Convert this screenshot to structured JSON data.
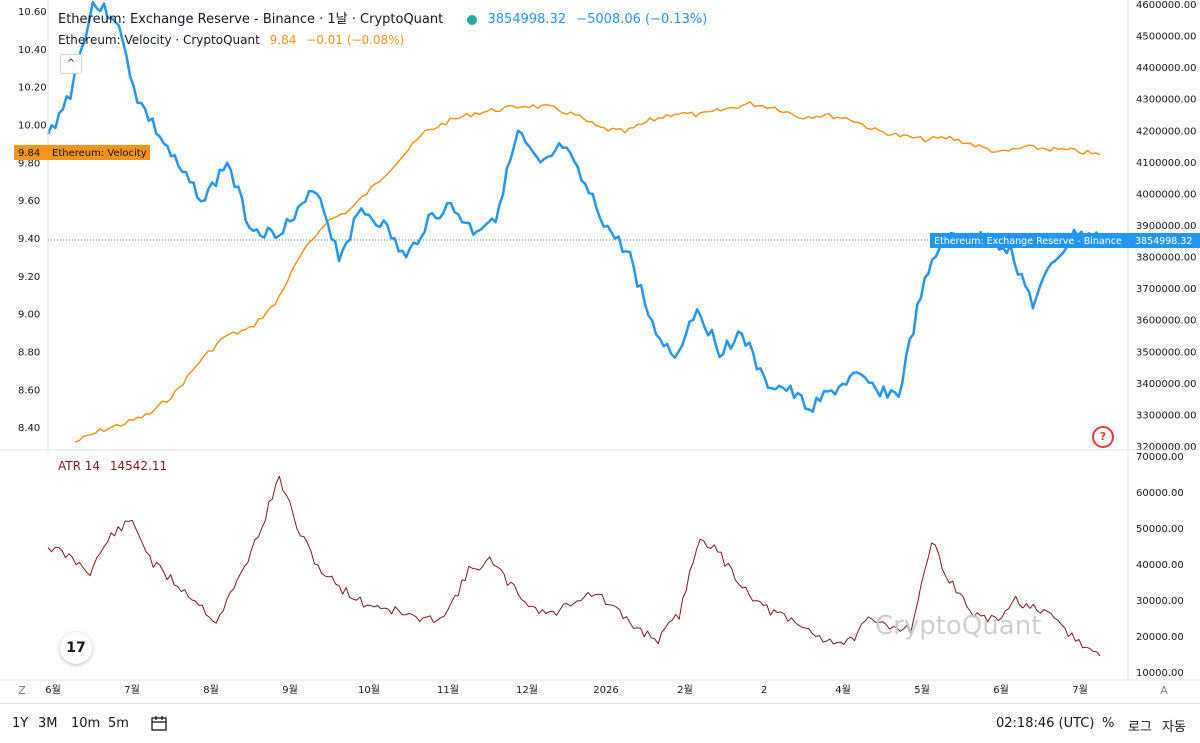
{
  "legend": {
    "main_title": "Ethereum: Exchange Reserve - Binance · 1날 · CryptoQuant",
    "main_value": "3854998.32",
    "main_change": "−5008.06 (−0.13%)",
    "velocity_title": "Ethereum: Velocity · CryptoQuant",
    "velocity_value": "9.84",
    "velocity_change": "−0.01 (−0.08%)",
    "atr_title": "ATR 14",
    "atr_value": "14542.11"
  },
  "labels": {
    "velocity_tag_value": "9.84",
    "velocity_tag_name": "Ethereum: Velocity",
    "reserve_tag_name": "Ethereum: Exchange Reserve - Binance",
    "reserve_tag_value": "3854998.32",
    "collapse": "^",
    "help": "?",
    "watermark": "CryptoQuant",
    "tv_logo": "17",
    "axis_left_btn": "Z",
    "axis_right_btn": "A"
  },
  "bottom_bar": {
    "timeframes": [
      "1Y",
      "3M",
      "10m",
      "5m"
    ],
    "time": "02:18:46 (UTC)",
    "percent": "%",
    "log": "로그",
    "auto": "자동"
  },
  "colors": {
    "reserve": "#2196f3",
    "velocity": "#f7931a",
    "atr": "#7b1c1c"
  },
  "chart_data": [
    {
      "type": "line",
      "title": "Ethereum: Exchange Reserve - Binance",
      "x_tick_labels": [
        "6월",
        "7월",
        "8월",
        "9월",
        "10월",
        "11월",
        "12월",
        "2026",
        "2월",
        "2",
        "4월",
        "5월",
        "6월",
        "7월"
      ],
      "right_axis": {
        "ticks": [
          "4600000.00",
          "4500000.00",
          "4400000.00",
          "4300000.00",
          "4200000.00",
          "4100000.00",
          "4000000.00",
          "3900000.00",
          "3800000.00",
          "3700000.00",
          "3600000.00",
          "3500000.00",
          "3400000.00",
          "3300000.00",
          "3200000.00"
        ],
        "ylim": [
          3200000,
          4600000
        ]
      },
      "left_axis": {
        "ticks": [
          "10.60",
          "10.40",
          "10.20",
          "10.00",
          "9.80",
          "9.60",
          "9.40",
          "9.20",
          "9.00",
          "8.80",
          "8.60",
          "8.40"
        ],
        "ylim": [
          8.3,
          10.6
        ]
      },
      "series": [
        {
          "name": "Ethereum: Exchange Reserve - Binance",
          "axis": "right",
          "values": [
            4180000,
            4320000,
            4600000,
            4560000,
            4300000,
            4180000,
            4060000,
            3980000,
            4100000,
            3900000,
            3870000,
            3920000,
            4020000,
            3800000,
            3950000,
            3900000,
            3790000,
            3920000,
            3960000,
            3880000,
            3930000,
            4190000,
            4080000,
            4150000,
            4020000,
            3890000,
            3800000,
            3580000,
            3480000,
            3640000,
            3500000,
            3560000,
            3400000,
            3380000,
            3320000,
            3370000,
            3420000,
            3380000,
            3360000,
            3680000,
            3860000,
            3850000,
            3860000,
            3820000,
            3650000,
            3790000,
            3880000,
            3855000
          ]
        },
        {
          "name": "Ethereum: Velocity",
          "axis": "left",
          "values": [
            8.32,
            8.38,
            8.42,
            8.47,
            8.58,
            8.75,
            8.88,
            8.92,
            9.05,
            9.3,
            9.48,
            9.55,
            9.68,
            9.82,
            9.96,
            10.02,
            10.06,
            10.08,
            10.1,
            10.09,
            10.05,
            9.98,
            9.96,
            10.02,
            10.06,
            10.05,
            10.08,
            10.11,
            10.09,
            10.04,
            10.05,
            10.03,
            9.97,
            9.94,
            9.92,
            9.93,
            9.89,
            9.85,
            9.88,
            9.87,
            9.86,
            9.84
          ]
        }
      ]
    },
    {
      "type": "line",
      "title": "ATR 14",
      "right_axis": {
        "ticks": [
          "70000.00",
          "60000.00",
          "50000.00",
          "40000.00",
          "30000.00",
          "20000.00",
          "10000.00"
        ],
        "ylim": [
          10000,
          70000
        ]
      },
      "series": [
        {
          "name": "ATR 14",
          "values": [
            45000,
            42000,
            38000,
            48000,
            52000,
            40000,
            35000,
            30000,
            24000,
            35000,
            48000,
            64000,
            48000,
            38000,
            33000,
            29000,
            28000,
            26000,
            24000,
            27000,
            38000,
            41000,
            34000,
            28000,
            26000,
            30000,
            32000,
            27000,
            22000,
            19000,
            26000,
            48000,
            42000,
            34000,
            28000,
            25000,
            22000,
            19000,
            18000,
            24000,
            23000,
            22000,
            46000,
            34000,
            26000,
            24000,
            30000,
            27000,
            24000,
            18000,
            14500
          ]
        }
      ]
    }
  ]
}
